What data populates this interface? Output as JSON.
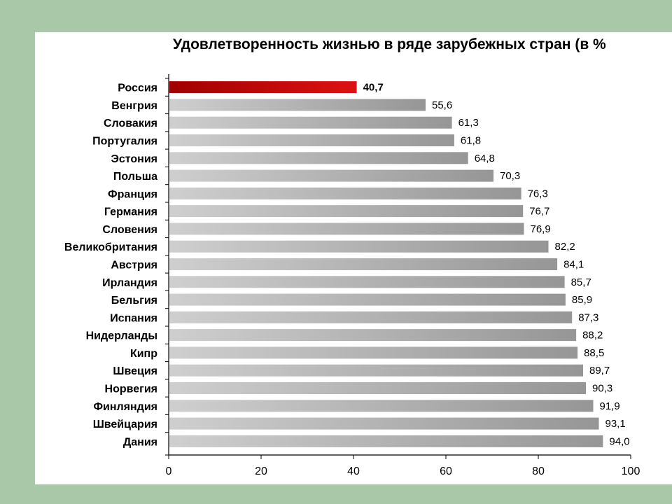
{
  "chart_data": {
    "type": "bar",
    "orientation": "horizontal",
    "title": "Удовлетворенность жизнью в ряде зарубежных стран (в %",
    "categories": [
      "Россия",
      "Венгрия",
      "Словакия",
      "Португалия",
      "Эстония",
      "Польша",
      "Франция",
      "Германия",
      "Словения",
      "Великобритания",
      "Австрия",
      "Ирландия",
      "Бельгия",
      "Испания",
      "Нидерланды",
      "Кипр",
      "Швеция",
      "Норвегия",
      "Финляндия",
      "Швейцария",
      "Дания"
    ],
    "values": [
      40.7,
      55.6,
      61.3,
      61.8,
      64.8,
      70.3,
      76.3,
      76.7,
      76.9,
      82.2,
      84.1,
      85.7,
      85.9,
      87.3,
      88.2,
      88.5,
      89.7,
      90.3,
      91.9,
      93.1,
      94.0
    ],
    "value_labels": [
      "40,7",
      "55,6",
      "61,3",
      "61,8",
      "64,8",
      "70,3",
      "76,3",
      "76,7",
      "76,9",
      "82,2",
      "84,1",
      "85,7",
      "85,9",
      "87,3",
      "88,2",
      "88,5",
      "89,7",
      "90,3",
      "91,9",
      "93,1",
      "94,0"
    ],
    "highlight_category": "Россия",
    "xlim": [
      0,
      100
    ],
    "xticks": [
      0,
      20,
      40,
      60,
      80,
      100
    ],
    "grid": false,
    "legend": "none",
    "colors": {
      "bar": "#b3b3b3",
      "bar_dark": "#969696",
      "bar_light": "#cfcfcf",
      "highlight": "#dd1111",
      "highlight_dark": "#a00000",
      "highlight_label": "#e01010",
      "background": "#a8c8a8",
      "panel": "#ffffff"
    }
  }
}
